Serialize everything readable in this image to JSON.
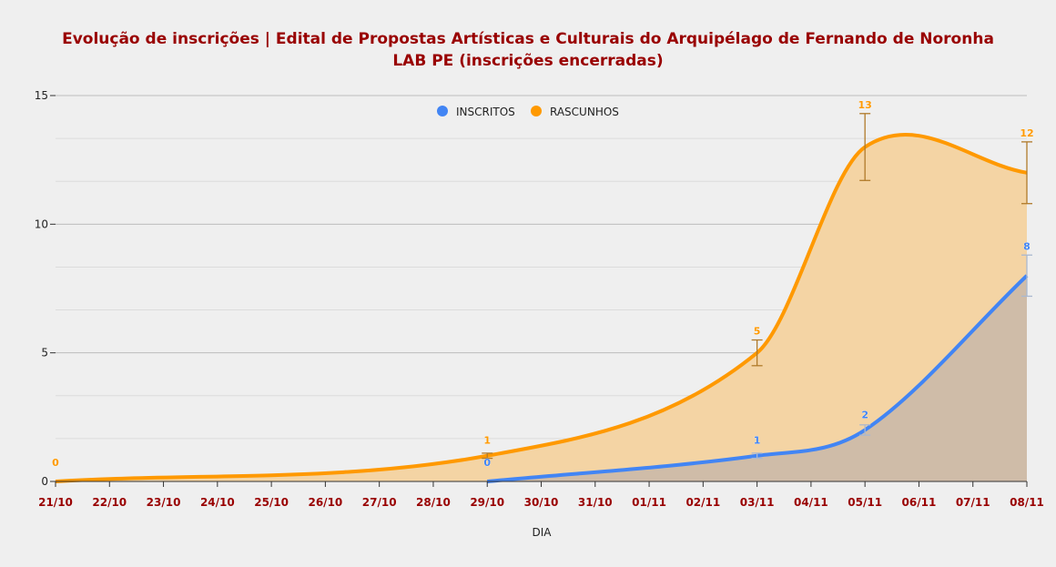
{
  "chart_data": {
    "type": "area",
    "title": "Evolução de inscrições | Edital de Propostas Artísticas e Culturais do Arquipélago de Fernando de Noronha",
    "subtitle": "LAB PE (inscrições encerradas)",
    "xlabel": "DIA",
    "ylabel": "",
    "ylim": [
      0,
      15
    ],
    "yticks": [
      "0",
      "5",
      "10",
      "15"
    ],
    "categories": [
      "21/10",
      "22/10",
      "23/10",
      "24/10",
      "25/10",
      "26/10",
      "27/10",
      "28/10",
      "29/10",
      "30/10",
      "31/10",
      "01/11",
      "02/11",
      "03/11",
      "04/11",
      "05/11",
      "06/11",
      "07/11",
      "08/11"
    ],
    "legend_position": "top-center",
    "grid": true,
    "series": [
      {
        "name": "RASCUNHOS",
        "color": "#ff9900",
        "fill": "#f4d4a4",
        "points": [
          {
            "x": 0,
            "y": 0,
            "label": "0"
          },
          {
            "x": 8,
            "y": 1,
            "label": "1"
          },
          {
            "x": 13,
            "y": 5,
            "label": "5"
          },
          {
            "x": 15,
            "y": 13,
            "label": "13"
          },
          {
            "x": 18,
            "y": 12,
            "label": "12"
          }
        ],
        "error_fraction": 0.1
      },
      {
        "name": "INSCRITOS",
        "color": "#4285f4",
        "fill": "#cfbca8",
        "points": [
          {
            "x": 8,
            "y": 0,
            "label": "0"
          },
          {
            "x": 13,
            "y": 1,
            "label": "1"
          },
          {
            "x": 15,
            "y": 2,
            "label": "2"
          },
          {
            "x": 18,
            "y": 8,
            "label": "8"
          }
        ],
        "error_fraction": 0.1
      }
    ]
  }
}
